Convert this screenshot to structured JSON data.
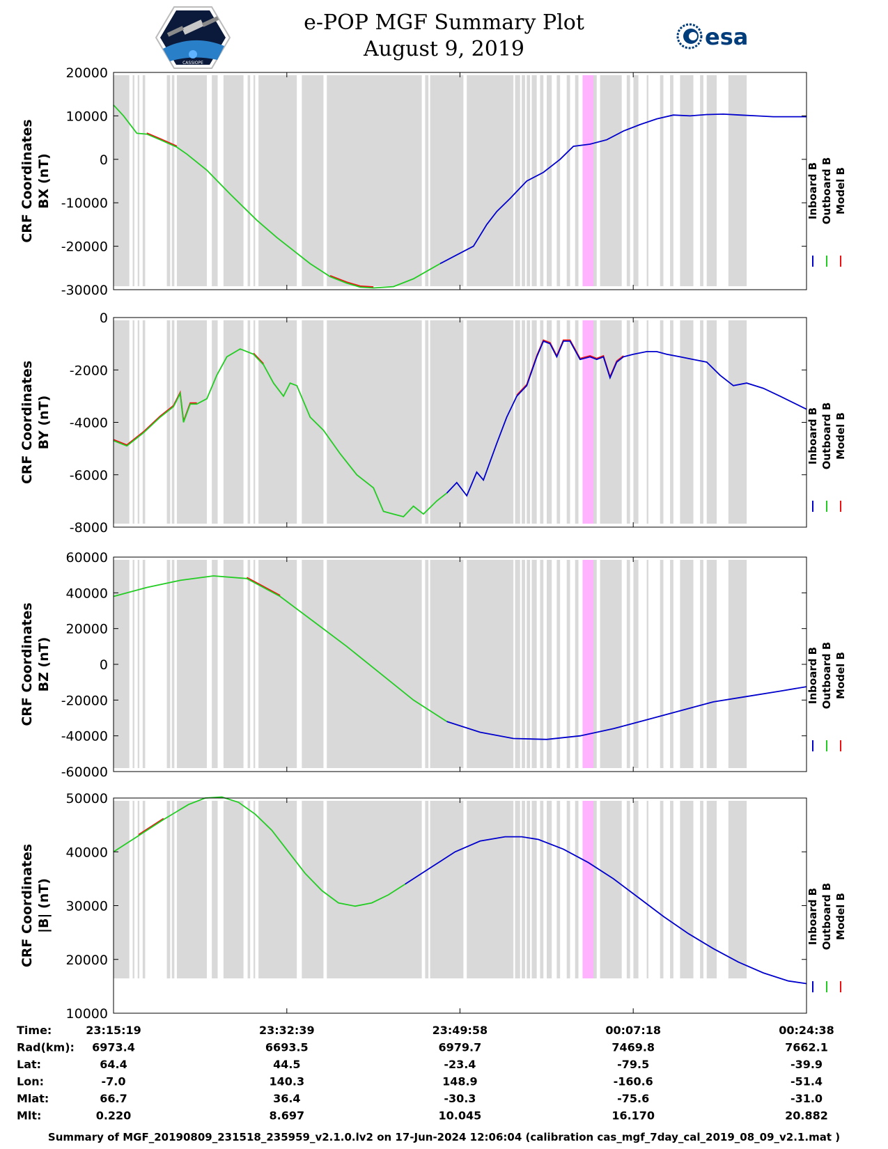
{
  "header": {
    "title_line1": "e-POP MGF Summary Plot",
    "title_line2": "August 9, 2019",
    "left_logo_text": "CASSIOPE",
    "right_logo_text": "esa"
  },
  "colors": {
    "inboard": "#0000cc",
    "outboard": "#22cc22",
    "model": "#ee1111",
    "gray_band": "#d9d9d9",
    "pink_band": "#ffb3ff"
  },
  "legend": {
    "inboard": "Inboard B",
    "outboard": "Outboard B",
    "model": "Model B"
  },
  "chart_data": [
    {
      "type": "line",
      "id": "bx",
      "ylabel_line1": "CRF Coordinates",
      "ylabel_line2": "BX (nT)",
      "ylim": [
        -30000,
        20000
      ],
      "yticks": [
        20000,
        10000,
        0,
        -10000,
        -20000,
        -30000
      ],
      "ytick_labels": [
        "20000",
        "10000",
        "0",
        "-10000",
        "-20000",
        "-30000"
      ],
      "xlim": [
        0,
        4159
      ],
      "switch_x": 2000,
      "model_segments": [
        [
          1300,
          1570
        ],
        [
          200,
          380
        ],
        [
          800,
          880
        ]
      ],
      "series": [
        {
          "name": "B",
          "x": [
            0,
            60,
            140,
            200,
            280,
            380,
            440,
            560,
            700,
            860,
            980,
            1080,
            1180,
            1300,
            1400,
            1480,
            1560,
            1680,
            1800,
            1960,
            2060,
            2160,
            2240,
            2300,
            2380,
            2480,
            2580,
            2680,
            2760,
            2860,
            2960,
            3060,
            3160,
            3260,
            3360,
            3460,
            3560,
            3660,
            3760,
            3860,
            3960,
            4159
          ],
          "y": [
            12500,
            10000,
            6000,
            5800,
            4500,
            2800,
            1200,
            -2500,
            -8000,
            -14000,
            -18000,
            -21000,
            -24000,
            -27000,
            -28500,
            -29400,
            -29600,
            -29300,
            -27500,
            -24000,
            -22000,
            -20000,
            -15000,
            -12000,
            -9000,
            -5000,
            -3000,
            0,
            3000,
            3500,
            4500,
            6500,
            8000,
            9300,
            10200,
            10000,
            10300,
            10400,
            10200,
            10000,
            9800,
            9800
          ]
        }
      ]
    },
    {
      "type": "line",
      "id": "by",
      "ylabel_line1": "CRF Coordinates",
      "ylabel_line2": "BY (nT)",
      "ylim": [
        -8000,
        0
      ],
      "yticks": [
        0,
        -2000,
        -4000,
        -6000,
        -8000
      ],
      "ytick_labels": [
        "0",
        "-2000",
        "-4000",
        "-6000",
        "-8000"
      ],
      "xlim": [
        0,
        4159
      ],
      "switch_x": 2000,
      "model_segments": [
        [
          0,
          500
        ],
        [
          780,
          900
        ],
        [
          2400,
          3100
        ]
      ],
      "series": [
        {
          "name": "B",
          "x": [
            0,
            80,
            180,
            280,
            360,
            400,
            420,
            460,
            500,
            560,
            620,
            680,
            760,
            840,
            900,
            960,
            1020,
            1060,
            1100,
            1180,
            1260,
            1360,
            1460,
            1560,
            1620,
            1680,
            1740,
            1800,
            1860,
            1940,
            2000,
            2060,
            2120,
            2180,
            2220,
            2260,
            2300,
            2360,
            2420,
            2480,
            2540,
            2580,
            2620,
            2660,
            2700,
            2740,
            2800,
            2860,
            2900,
            2940,
            2980,
            3020,
            3060,
            3120,
            3200,
            3260,
            3320,
            3400,
            3480,
            3560,
            3640,
            3720,
            3800,
            3900,
            4000,
            4159
          ],
          "y": [
            -4700,
            -4900,
            -4400,
            -3800,
            -3400,
            -2900,
            -4000,
            -3300,
            -3300,
            -3100,
            -2200,
            -1500,
            -1200,
            -1400,
            -1800,
            -2500,
            -3000,
            -2500,
            -2600,
            -3800,
            -4300,
            -5200,
            -6000,
            -6500,
            -7400,
            -7500,
            -7600,
            -7200,
            -7500,
            -7000,
            -6700,
            -6300,
            -6800,
            -5900,
            -6200,
            -5500,
            -4800,
            -3800,
            -3000,
            -2600,
            -1500,
            -900,
            -1000,
            -1500,
            -900,
            -900,
            -1600,
            -1500,
            -1600,
            -1500,
            -2300,
            -1700,
            -1500,
            -1400,
            -1300,
            -1300,
            -1400,
            -1500,
            -1600,
            -1700,
            -2200,
            -2600,
            -2500,
            -2700,
            -3000,
            -3500
          ]
        }
      ]
    },
    {
      "type": "line",
      "id": "bz",
      "ylabel_line1": "CRF Coordinates",
      "ylabel_line2": "BZ (nT)",
      "ylim": [
        -60000,
        60000
      ],
      "yticks": [
        60000,
        40000,
        20000,
        0,
        -20000,
        -40000,
        -60000
      ],
      "ytick_labels": [
        "60000",
        "40000",
        "20000",
        "0",
        "-20000",
        "-40000",
        "-60000"
      ],
      "xlim": [
        0,
        4159
      ],
      "switch_x": 2000,
      "model_segments": [
        [
          780,
          1000
        ]
      ],
      "series": [
        {
          "name": "B",
          "x": [
            0,
            200,
            400,
            600,
            800,
            1000,
            1200,
            1400,
            1600,
            1800,
            2000,
            2200,
            2400,
            2600,
            2800,
            3000,
            3200,
            3400,
            3600,
            3800,
            4000,
            4159
          ],
          "y": [
            38000,
            43000,
            47000,
            49500,
            48000,
            38000,
            24000,
            10000,
            -5000,
            -20000,
            -32000,
            -38000,
            -41500,
            -42000,
            -40000,
            -36000,
            -31000,
            -26000,
            -21000,
            -18000,
            -15000,
            -12500
          ]
        }
      ]
    },
    {
      "type": "line",
      "id": "bmag",
      "ylabel_line1": "CRF Coordinates",
      "ylabel_line2": "|B| (nT)",
      "ylim": [
        10000,
        50000
      ],
      "yticks": [
        50000,
        40000,
        30000,
        20000,
        10000
      ],
      "ytick_labels": [
        "50000",
        "40000",
        "30000",
        "20000",
        "10000"
      ],
      "xlim": [
        0,
        4159
      ],
      "switch_x": 1780,
      "model_segments": [
        [
          880,
          1010
        ],
        [
          60,
          300
        ]
      ],
      "series": [
        {
          "name": "B",
          "x": [
            0,
            150,
            300,
            450,
            550,
            650,
            750,
            850,
            950,
            1050,
            1150,
            1250,
            1350,
            1450,
            1550,
            1650,
            1750,
            1900,
            2050,
            2200,
            2350,
            2450,
            2550,
            2700,
            2850,
            3000,
            3150,
            3300,
            3450,
            3600,
            3750,
            3900,
            4050,
            4159
          ],
          "y": [
            40000,
            43000,
            46000,
            48800,
            50000,
            50200,
            49200,
            47000,
            44000,
            40000,
            36000,
            32800,
            30500,
            29900,
            30500,
            32000,
            34000,
            37000,
            40000,
            42000,
            42800,
            42800,
            42300,
            40500,
            38000,
            35000,
            31500,
            28000,
            24800,
            22000,
            19500,
            17500,
            16000,
            15500
          ]
        }
      ]
    }
  ],
  "bands": {
    "gray": [
      [
        0,
        95
      ],
      [
        115,
        125
      ],
      [
        145,
        155
      ],
      [
        175,
        190
      ],
      [
        320,
        340
      ],
      [
        350,
        365
      ],
      [
        380,
        560
      ],
      [
        590,
        625
      ],
      [
        660,
        780
      ],
      [
        805,
        820
      ],
      [
        840,
        850
      ],
      [
        870,
        1100
      ],
      [
        1130,
        1260
      ],
      [
        1280,
        1850
      ],
      [
        1870,
        1890
      ],
      [
        1900,
        2100
      ],
      [
        2120,
        2400
      ],
      [
        2410,
        2440
      ],
      [
        2450,
        2470
      ],
      [
        2480,
        2500
      ],
      [
        2510,
        2540
      ],
      [
        2560,
        2580
      ],
      [
        2600,
        2630
      ],
      [
        2660,
        2680
      ],
      [
        2720,
        2740
      ],
      [
        2770,
        2790
      ],
      [
        2830,
        2850
      ],
      [
        2870,
        2900
      ],
      [
        2920,
        3050
      ],
      [
        3080,
        3100
      ],
      [
        3120,
        3150
      ],
      [
        3200,
        3210
      ],
      [
        3280,
        3300
      ],
      [
        3340,
        3360
      ],
      [
        3400,
        3480
      ],
      [
        3520,
        3540
      ],
      [
        3560,
        3620
      ],
      [
        3690,
        3800
      ]
    ],
    "pink": [
      [
        2815,
        2880
      ]
    ]
  },
  "time_table": {
    "row_labels": [
      "Time:",
      "Rad(km):",
      "Lat:",
      "Lon:",
      "Mlat:",
      "Mlt:"
    ],
    "columns": [
      [
        "23:15:19",
        "6973.4",
        "64.4",
        "-7.0",
        "66.7",
        "0.220"
      ],
      [
        "23:32:39",
        "6693.5",
        "44.5",
        "140.3",
        "36.4",
        "8.697"
      ],
      [
        "23:49:58",
        "6979.7",
        "-23.4",
        "148.9",
        "-30.3",
        "10.045"
      ],
      [
        "00:07:18",
        "7469.8",
        "-79.5",
        "-160.6",
        "-75.6",
        "16.170"
      ],
      [
        "00:24:38",
        "7662.1",
        "-39.9",
        "-51.4",
        "-31.0",
        "20.882"
      ]
    ],
    "x_ticks": [
      0,
      1040,
      2079,
      3119,
      4159
    ]
  },
  "footer": "Summary of MGF_20190809_231518_235959_v2.1.0.lv2 on 17-Jun-2024 12:06:04 (calibration cas_mgf_7day_cal_2019_08_09_v2.1.mat )"
}
